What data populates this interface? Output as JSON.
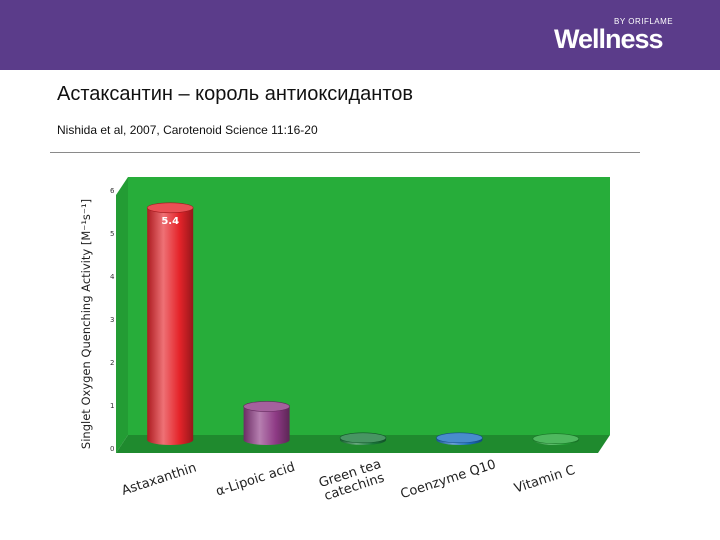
{
  "header": {
    "logo_text": "Wellness",
    "logo_subtext": "BY ORIFLAME",
    "bar_color": "#5b3c8a"
  },
  "slide": {
    "title": "Астаксантин – король антиоксидантов",
    "citation": "Nishida et al, 2007, Carotenoid Science 11:16-20"
  },
  "chart_data": {
    "type": "bar",
    "ylabel": "Singlet Oxygen Quenching Activity [M⁻¹s⁻¹]",
    "ylim": [
      0,
      6
    ],
    "yticks": [
      "0",
      "1",
      "2",
      "3",
      "4",
      "5",
      "6"
    ],
    "categories": [
      [
        "Astaxanthin"
      ],
      [
        "α-Lipoic acid"
      ],
      [
        "Green tea",
        "catechins"
      ],
      [
        "Coenzyme Q10"
      ],
      [
        "Vitamin C"
      ]
    ],
    "values": [
      5.4,
      0.78,
      0.05,
      0.05,
      0.03
    ],
    "data_labels": [
      "5.4",
      "",
      "",
      "",
      ""
    ],
    "colors": [
      "#e5242a",
      "#8e3a85",
      "#1a7a3c",
      "#1c6fc0",
      "#23a637"
    ],
    "background_color": "#27ad3a",
    "grid": false
  }
}
